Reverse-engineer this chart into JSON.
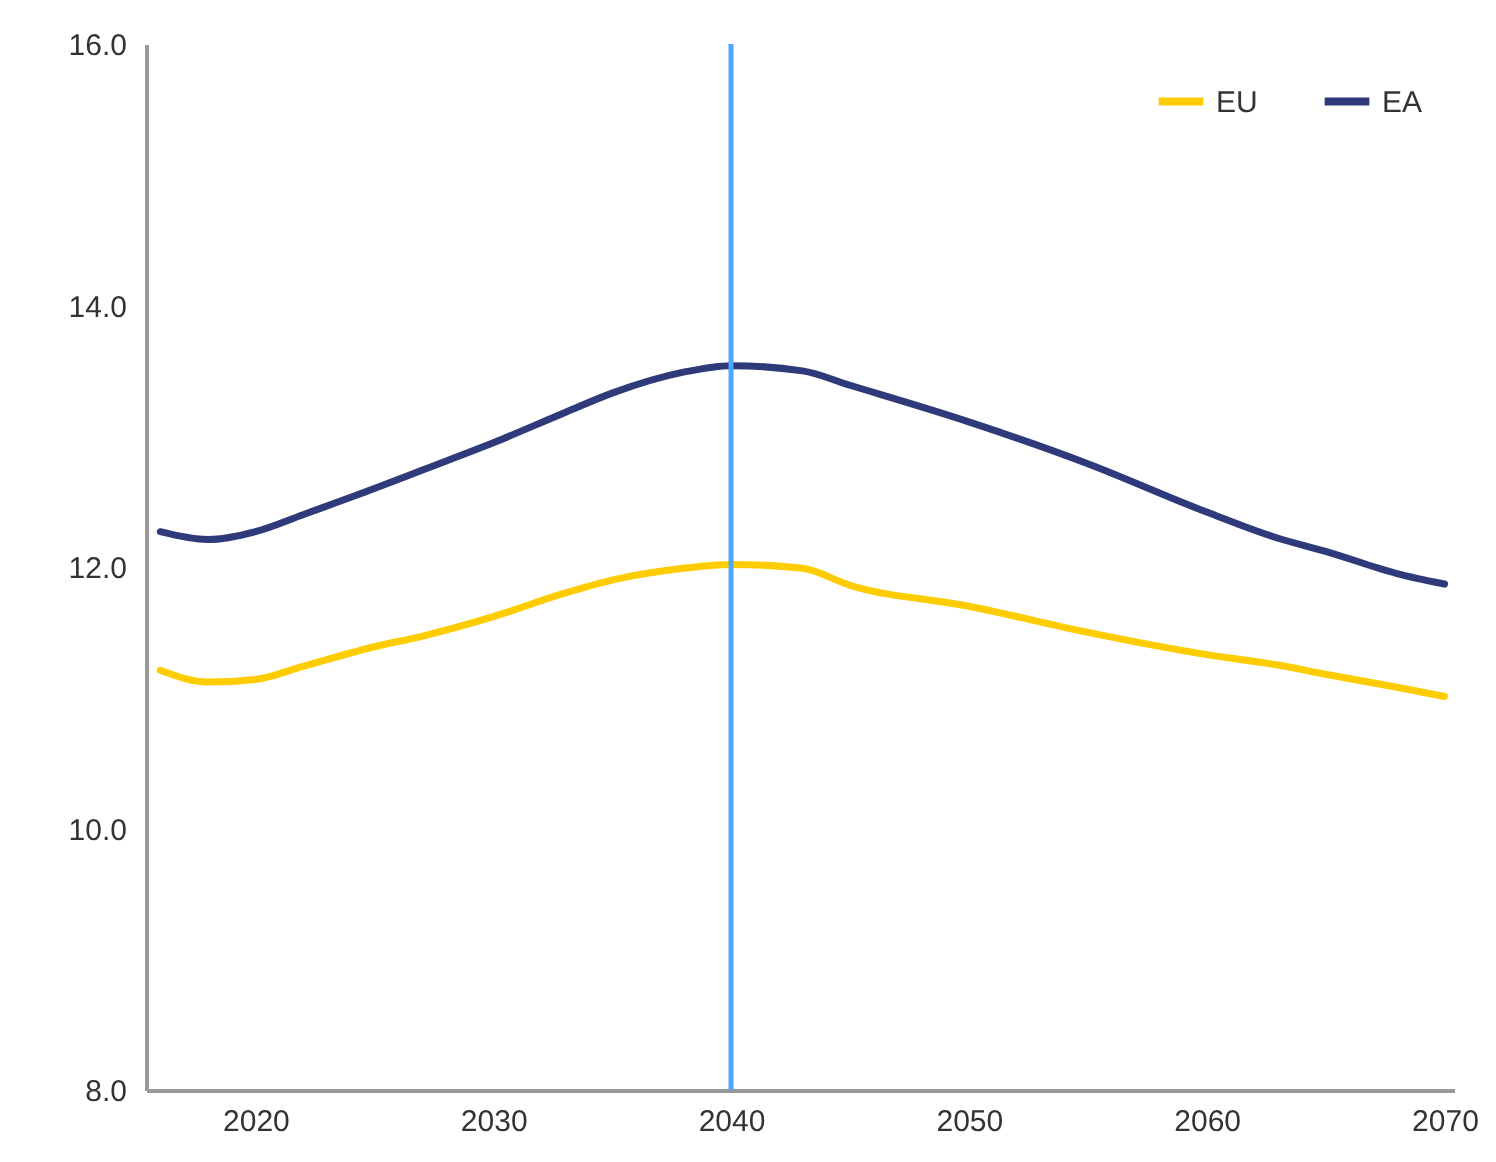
{
  "chart_data": {
    "type": "line",
    "x": [
      2016,
      2018,
      2020,
      2022,
      2025,
      2027,
      2030,
      2033,
      2035,
      2038,
      2040,
      2043,
      2045,
      2050,
      2055,
      2060,
      2063,
      2065,
      2068,
      2070
    ],
    "series": [
      {
        "name": "EU",
        "color": "#ffcc00",
        "values": [
          11.21,
          11.12,
          11.14,
          11.24,
          11.39,
          11.47,
          11.62,
          11.8,
          11.9,
          11.99,
          12.02,
          11.99,
          11.86,
          11.7,
          11.5,
          11.33,
          11.25,
          11.18,
          11.08,
          11.01
        ]
      },
      {
        "name": "EA",
        "color": "#2e3a7a",
        "values": [
          12.27,
          12.21,
          12.27,
          12.4,
          12.6,
          12.74,
          12.95,
          13.18,
          13.33,
          13.49,
          13.54,
          13.5,
          13.39,
          13.11,
          12.79,
          12.42,
          12.22,
          12.12,
          11.95,
          11.87
        ]
      }
    ],
    "xlim": [
      2015.4,
      2070.4
    ],
    "xticks": [
      2020,
      2030,
      2040,
      2050,
      2060,
      2070
    ],
    "ylim": [
      8,
      16
    ],
    "yticks": [
      {
        "value": 8,
        "label": "8.0"
      },
      {
        "value": 10,
        "label": "10.0"
      },
      {
        "value": 12,
        "label": "12.0"
      },
      {
        "value": 14,
        "label": "14.0"
      },
      {
        "value": 16,
        "label": "16.0"
      }
    ],
    "ref_lines": [
      {
        "axis": "x",
        "value": 2040,
        "color": "#4da6ff"
      }
    ],
    "legend": "top right",
    "grid": false,
    "marker": "none",
    "line_style": "solid"
  }
}
